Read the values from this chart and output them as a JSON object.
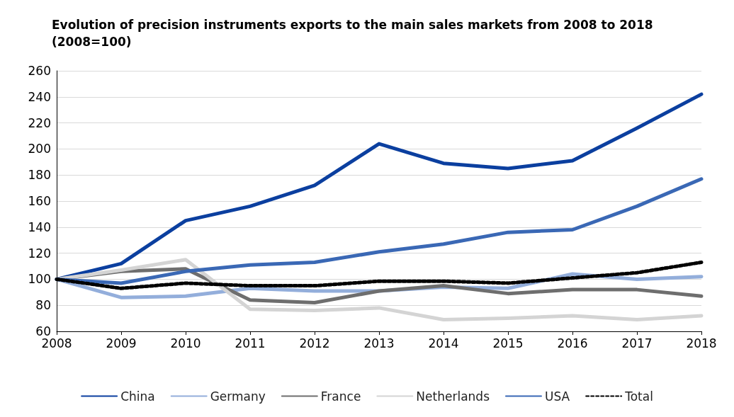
{
  "chart_data": {
    "type": "line",
    "title": "Evolution of precision instruments exports to the main sales markets from 2008 to 2018\n(2008=100)",
    "categories": [
      "2008",
      "2009",
      "2010",
      "2011",
      "2012",
      "2013",
      "2014",
      "2015",
      "2016",
      "2017",
      "2018"
    ],
    "ylim": [
      60,
      260
    ],
    "yticks": [
      60,
      80,
      100,
      120,
      140,
      160,
      180,
      200,
      220,
      240,
      260
    ],
    "grid": "y",
    "legend": "bottom",
    "marker": "none",
    "line_style": "solid",
    "series": [
      {
        "name": "China",
        "color": "#0b3f9f",
        "values": [
          100,
          112,
          145,
          156,
          172,
          204,
          189,
          185,
          191,
          216,
          242
        ]
      },
      {
        "name": "Germany",
        "color": "#93aedb",
        "values": [
          100,
          86,
          87,
          93,
          91,
          91,
          94,
          93,
          104,
          100,
          102
        ]
      },
      {
        "name": "France",
        "color": "#6e6e6e",
        "values": [
          100,
          106,
          108,
          84,
          82,
          91,
          95,
          89,
          92,
          92,
          87
        ]
      },
      {
        "name": "Netherlands",
        "color": "#d4d4d4",
        "values": [
          100,
          107,
          115,
          77,
          76,
          78,
          69,
          70,
          72,
          69,
          72
        ]
      },
      {
        "name": "USA",
        "color": "#3a68b5",
        "values": [
          100,
          97,
          106,
          111,
          113,
          121,
          127,
          136,
          138,
          156,
          177
        ]
      },
      {
        "name": "Total",
        "color": "#000000",
        "line_style": "dashed",
        "values": [
          100,
          93,
          97,
          95,
          95,
          98.5,
          98.5,
          97,
          101,
          105,
          113
        ]
      }
    ]
  }
}
